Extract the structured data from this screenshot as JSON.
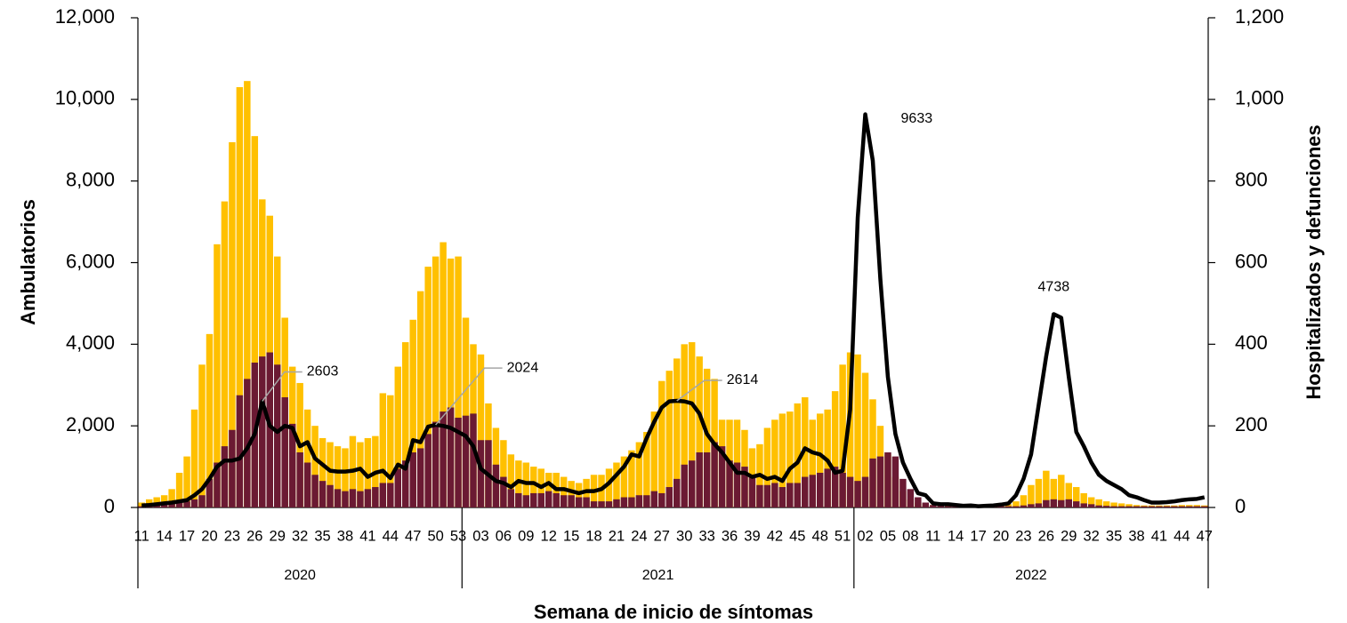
{
  "chart_data": {
    "type": "bar_line",
    "y_title": "Ambulatorios",
    "y2_title": "Hospitalizados y defunciones",
    "x_title": "Semana de inicio de síntomas",
    "groups": [
      {
        "label": "2020",
        "categories": [
          "11",
          null,
          null,
          "14",
          null,
          null,
          "17",
          null,
          null,
          "20",
          null,
          null,
          "23",
          null,
          null,
          "26",
          null,
          null,
          "29",
          null,
          null,
          "32",
          null,
          null,
          "35",
          null,
          null,
          "38",
          null,
          null,
          "41",
          null,
          null,
          "44",
          null,
          null,
          "47",
          null,
          null,
          "50",
          null,
          null,
          "53"
        ]
      },
      {
        "label": "2021",
        "categories": [
          null,
          null,
          "03",
          null,
          null,
          "06",
          null,
          null,
          "09",
          null,
          null,
          "12",
          null,
          null,
          "15",
          null,
          null,
          "18",
          null,
          null,
          "21",
          null,
          null,
          "24",
          null,
          null,
          "27",
          null,
          null,
          "30",
          null,
          null,
          "33",
          null,
          null,
          "36",
          null,
          null,
          "39",
          null,
          null,
          "42",
          null,
          null,
          "45",
          null,
          null,
          "48",
          null,
          null,
          "51",
          null
        ]
      },
      {
        "label": "2022",
        "categories": [
          null,
          "02",
          null,
          null,
          "05",
          null,
          null,
          "08",
          null,
          null,
          "11",
          null,
          null,
          "14",
          null,
          null,
          "17",
          null,
          null,
          "20",
          null,
          null,
          "23",
          null,
          null,
          "26",
          null,
          null,
          "29",
          null,
          null,
          "32",
          null,
          null,
          "35",
          null,
          null,
          "38",
          null,
          null,
          "41",
          null,
          null,
          "44",
          null,
          null,
          "47"
        ]
      }
    ],
    "series": [
      {
        "color": "#FFC000",
        "type": "bar",
        "axis": "y2",
        "values": [
          12,
          20,
          25,
          30,
          45,
          85,
          125,
          240,
          350,
          425,
          645,
          750,
          895,
          1030,
          1045,
          910,
          755,
          715,
          615,
          465,
          345,
          305,
          240,
          200,
          170,
          160,
          150,
          145,
          175,
          160,
          170,
          175,
          280,
          275,
          345,
          405,
          460,
          530,
          590,
          615,
          650,
          610,
          615,
          465,
          400,
          375,
          255,
          195,
          165,
          130,
          115,
          110,
          100,
          95,
          85,
          85,
          75,
          65,
          60,
          70,
          80,
          80,
          95,
          110,
          125,
          140,
          160,
          185,
          235,
          310,
          335,
          365,
          400,
          405,
          370,
          340,
          315,
          215,
          215,
          215,
          190,
          145,
          155,
          195,
          215,
          230,
          235,
          255,
          270,
          215,
          230,
          240,
          285,
          350,
          380,
          375,
          330,
          265,
          200,
          130,
          75,
          40,
          20,
          12,
          8,
          6,
          5,
          5,
          5,
          5,
          5,
          5,
          5,
          6,
          7,
          8,
          15,
          30,
          55,
          70,
          90,
          70,
          80,
          60,
          50,
          35,
          25,
          20,
          15,
          12,
          10,
          8,
          6,
          5,
          5,
          5,
          5,
          5,
          6,
          6,
          6,
          5
        ]
      },
      {
        "color": "#6B1A33",
        "type": "bar",
        "axis": "y2",
        "values": [
          3,
          5,
          5,
          7,
          10,
          12,
          15,
          20,
          30,
          70,
          110,
          150,
          190,
          275,
          315,
          355,
          370,
          380,
          350,
          270,
          205,
          135,
          110,
          80,
          65,
          55,
          45,
          40,
          45,
          40,
          45,
          50,
          60,
          60,
          95,
          115,
          135,
          145,
          180,
          210,
          235,
          245,
          220,
          225,
          230,
          165,
          165,
          105,
          75,
          45,
          35,
          30,
          35,
          35,
          40,
          35,
          30,
          30,
          25,
          25,
          15,
          15,
          15,
          20,
          25,
          25,
          30,
          30,
          40,
          35,
          50,
          70,
          105,
          115,
          135,
          135,
          160,
          150,
          115,
          110,
          100,
          75,
          55,
          55,
          60,
          50,
          60,
          60,
          75,
          80,
          85,
          95,
          100,
          85,
          75,
          65,
          75,
          120,
          125,
          135,
          125,
          70,
          45,
          25,
          12,
          6,
          4,
          3,
          3,
          3,
          3,
          3,
          3,
          3,
          3,
          3,
          3,
          5,
          8,
          10,
          18,
          20,
          18,
          20,
          15,
          10,
          8,
          5,
          4,
          3,
          3,
          3,
          3,
          3,
          3,
          3,
          3,
          3,
          3,
          3,
          3,
          3
        ]
      },
      {
        "color": "#000000",
        "type": "line",
        "axis": "y",
        "values": [
          50,
          60,
          80,
          100,
          120,
          150,
          180,
          300,
          450,
          700,
          1000,
          1150,
          1150,
          1200,
          1450,
          1800,
          2603,
          2000,
          1850,
          2000,
          1950,
          1500,
          1600,
          1200,
          1050,
          900,
          880,
          880,
          900,
          950,
          750,
          850,
          900,
          720,
          1050,
          950,
          1650,
          1600,
          1980,
          2024,
          2000,
          1950,
          1850,
          1750,
          1500,
          950,
          800,
          650,
          600,
          500,
          650,
          600,
          600,
          500,
          600,
          450,
          450,
          400,
          350,
          400,
          400,
          450,
          600,
          800,
          1000,
          1300,
          1250,
          1700,
          2100,
          2450,
          2600,
          2614,
          2600,
          2550,
          2300,
          1800,
          1550,
          1350,
          1100,
          850,
          850,
          750,
          800,
          700,
          750,
          650,
          950,
          1100,
          1450,
          1350,
          1300,
          1150,
          850,
          900,
          2400,
          7100,
          9633,
          8500,
          5600,
          3200,
          1800,
          1100,
          700,
          350,
          300,
          100,
          80,
          80,
          60,
          40,
          50,
          30,
          40,
          50,
          70,
          100,
          300,
          700,
          1300,
          2500,
          3700,
          4738,
          4650,
          3200,
          1850,
          1500,
          1100,
          800,
          650,
          550,
          450,
          300,
          250,
          180,
          120,
          120,
          130,
          150,
          180,
          200,
          210,
          250
        ],
        "value_labels": [
          null,
          null,
          null,
          null,
          null,
          null,
          null,
          null,
          null,
          null,
          null,
          null,
          null,
          null,
          null,
          null,
          "2603",
          null,
          null,
          null,
          null,
          null,
          null,
          null,
          null,
          null,
          null,
          null,
          null,
          null,
          null,
          null,
          null,
          null,
          null,
          null,
          null,
          null,
          null,
          "2024",
          null,
          null,
          null,
          null,
          null,
          null,
          null,
          null,
          null,
          null,
          null,
          null,
          null,
          null,
          null,
          null,
          null,
          null,
          null,
          null,
          null,
          null,
          null,
          null,
          null,
          null,
          null,
          null,
          null,
          null,
          null,
          "2614",
          null,
          null,
          null,
          null,
          null,
          null,
          null,
          null,
          null,
          null,
          null,
          null,
          null,
          null,
          null,
          null,
          null,
          null,
          null,
          null,
          null,
          null,
          null,
          null,
          "9633",
          null,
          null,
          null,
          null,
          null,
          null,
          null,
          null,
          null,
          null,
          null,
          null,
          null,
          null,
          null,
          null,
          null,
          null,
          null,
          null,
          null,
          null,
          null,
          null,
          "4738",
          null,
          null,
          null,
          null,
          null,
          null,
          null,
          null,
          null,
          null,
          null,
          null,
          null,
          null,
          null,
          null,
          null,
          null,
          null,
          null
        ]
      }
    ],
    "ylim": [
      0,
      12000
    ],
    "yticks": [
      0,
      {
        "value": 2000,
        "label": "2,000"
      },
      {
        "value": 4000,
        "label": "4,000"
      },
      {
        "value": 6000,
        "label": "6,000"
      },
      {
        "value": 8000,
        "label": "8,000"
      },
      {
        "value": 10000,
        "label": "10,000"
      },
      {
        "value": 12000,
        "label": "12,000"
      }
    ],
    "y2lim": [
      0,
      1200
    ],
    "y2ticks": [
      0,
      200,
      400,
      600,
      800,
      {
        "value": 1000,
        "label": "1,000"
      },
      {
        "value": 1200,
        "label": "1,200"
      }
    ],
    "grid": false
  }
}
